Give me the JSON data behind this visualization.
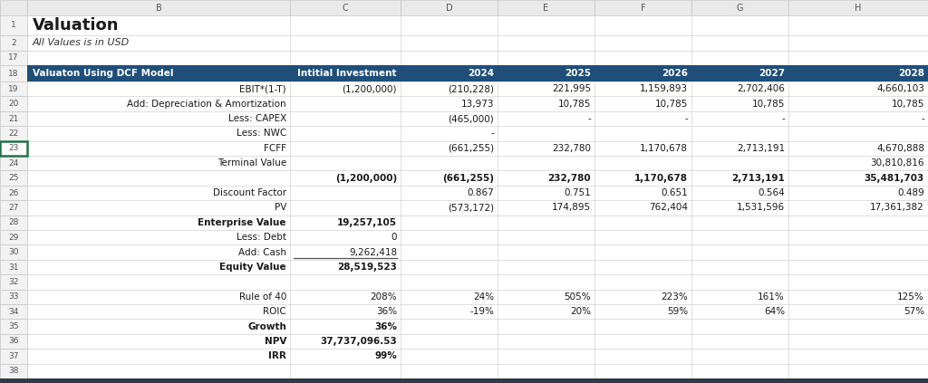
{
  "title": "Valuation",
  "subtitle": "All Values is in USD",
  "header_bg": "#1F4E79",
  "header_fg": "#FFFFFF",
  "col_header_label": "Valuaton Using DCF Model",
  "columns": [
    "Intitial Investment",
    "2024",
    "2025",
    "2026",
    "2027",
    "2028"
  ],
  "rows": [
    {
      "label": "EBIT*(1-T)",
      "bold": false,
      "values": [
        "(1,200,000)",
        "(210,228)",
        "221,995",
        "1,159,893",
        "2,702,406",
        "4,660,103"
      ]
    },
    {
      "label": "Add: Depreciation & Amortization",
      "bold": false,
      "values": [
        "",
        "13,973",
        "10,785",
        "10,785",
        "10,785",
        "10,785"
      ]
    },
    {
      "label": "Less: CAPEX",
      "bold": false,
      "values": [
        "",
        "(465,000)",
        "-",
        "-",
        "-",
        "-"
      ]
    },
    {
      "label": "Less: NWC",
      "bold": false,
      "values": [
        "",
        "-",
        "",
        "",
        "",
        ""
      ]
    },
    {
      "label": "FCFF",
      "bold": false,
      "values": [
        "",
        "(661,255)",
        "232,780",
        "1,170,678",
        "2,713,191",
        "4,670,888"
      ]
    },
    {
      "label": "Terminal Value",
      "bold": false,
      "values": [
        "",
        "",
        "",
        "",
        "",
        "30,810,816"
      ]
    },
    {
      "label": "",
      "bold": true,
      "values": [
        "(1,200,000)",
        "(661,255)",
        "232,780",
        "1,170,678",
        "2,713,191",
        "35,481,703"
      ]
    },
    {
      "label": "Discount Factor",
      "bold": false,
      "values": [
        "",
        "0.867",
        "0.751",
        "0.651",
        "0.564",
        "0.489"
      ]
    },
    {
      "label": "PV",
      "bold": false,
      "values": [
        "",
        "(573,172)",
        "174,895",
        "762,404",
        "1,531,596",
        "17,361,382"
      ]
    },
    {
      "label": "Enterprise Value",
      "bold": true,
      "values": [
        "19,257,105",
        "",
        "",
        "",
        "",
        ""
      ]
    },
    {
      "label": "Less: Debt",
      "bold": false,
      "values": [
        "0",
        "",
        "",
        "",
        "",
        ""
      ]
    },
    {
      "label": "Add: Cash",
      "bold": false,
      "values": [
        "9,262,418",
        "",
        "",
        "",
        "",
        ""
      ]
    },
    {
      "label": "Equity Value",
      "bold": true,
      "values": [
        "28,519,523",
        "",
        "",
        "",
        "",
        ""
      ]
    },
    {
      "label": "",
      "bold": false,
      "values": [
        "",
        "",
        "",
        "",
        "",
        ""
      ]
    },
    {
      "label": "Rule of 40",
      "bold": false,
      "values": [
        "208%",
        "24%",
        "505%",
        "223%",
        "161%",
        "125%"
      ]
    },
    {
      "label": "ROIC",
      "bold": false,
      "values": [
        "36%",
        "-19%",
        "20%",
        "59%",
        "64%",
        "57%"
      ]
    },
    {
      "label": "Growth",
      "bold": true,
      "values": [
        "36%",
        "",
        "",
        "",
        "",
        ""
      ]
    },
    {
      "label": "NPV",
      "bold": true,
      "values": [
        "37,737,096.53",
        "",
        "",
        "",
        "",
        ""
      ]
    },
    {
      "label": "IRR",
      "bold": true,
      "values": [
        "99%",
        "",
        "",
        "",
        "",
        ""
      ]
    }
  ],
  "bg_color": "#FFFFFF",
  "grid_color": "#C8C8C8",
  "header_row_col": "#EAEAEA",
  "header_row_col_text": "#555555",
  "row_num_bg": "#F2F2F2",
  "bottom_bar_color": "#2D3A4A",
  "selected_cell_border": "#217346",
  "selected_cell_bg": "#FFFFFF"
}
